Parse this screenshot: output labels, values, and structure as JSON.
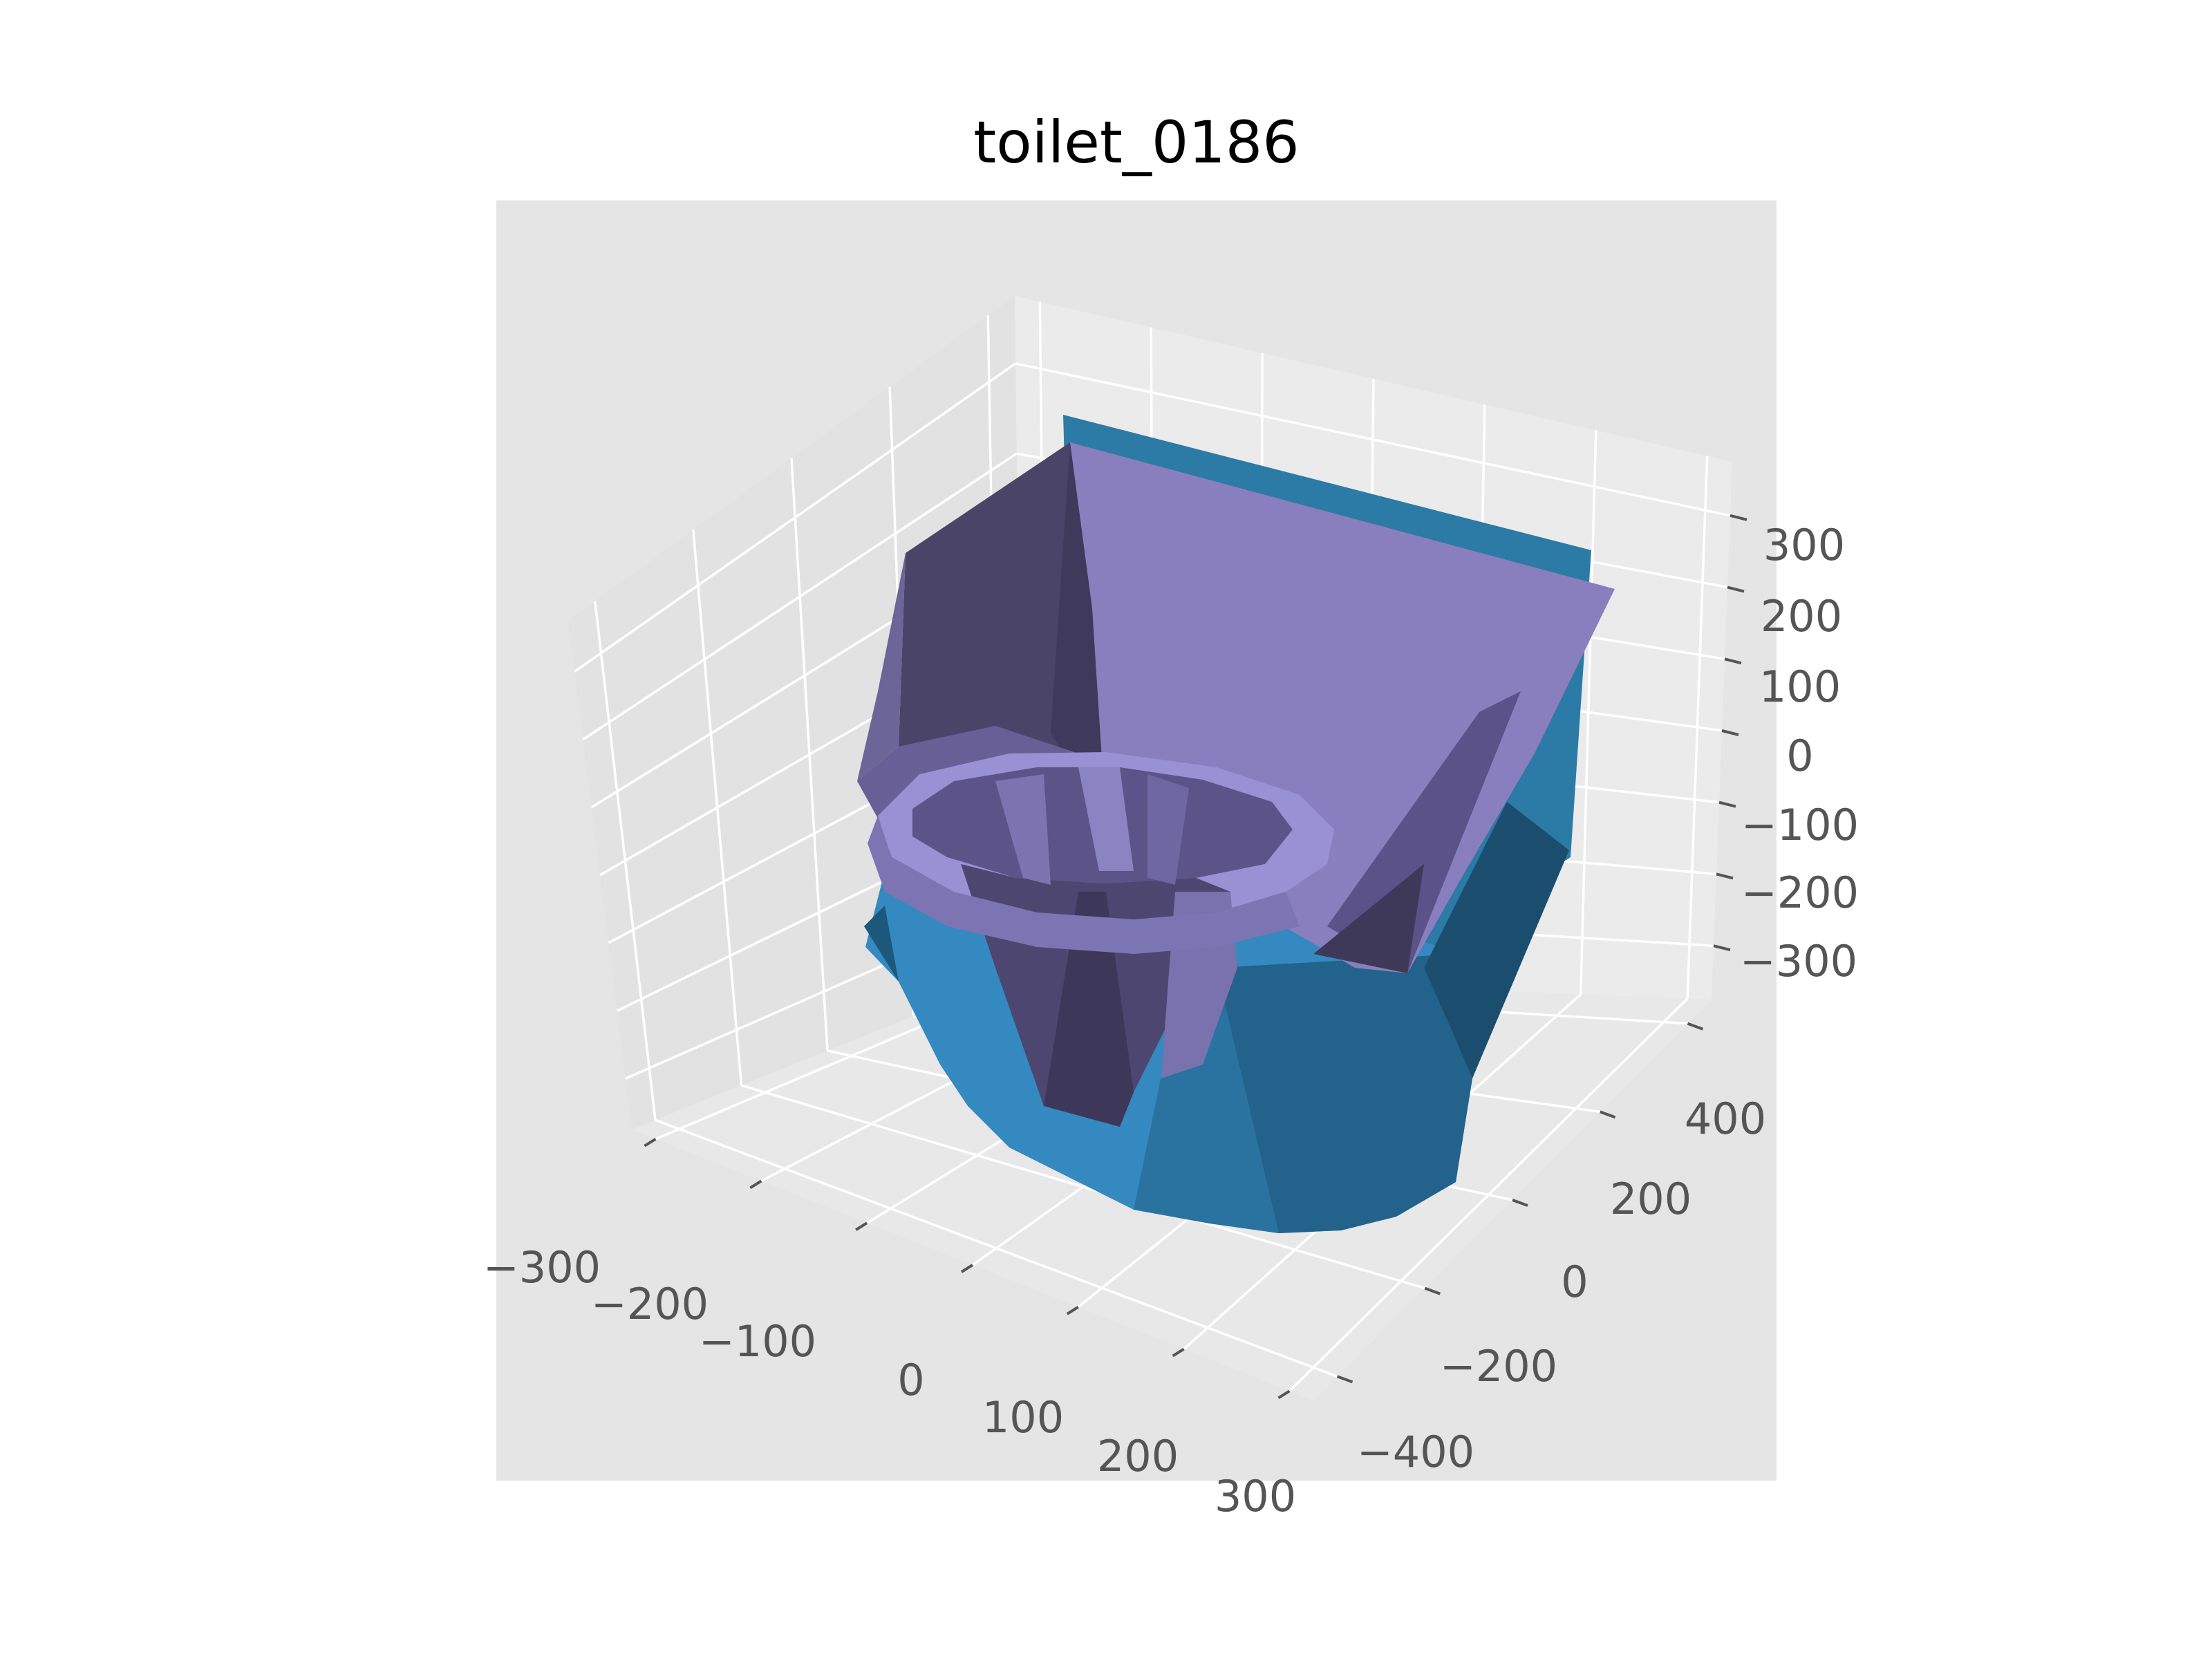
{
  "chart_data": {
    "type": "3d-surface",
    "title": "toilet_0186",
    "xlabel": "",
    "ylabel": "",
    "zlabel": "",
    "x_ticks": [
      "−300",
      "−200",
      "−100",
      "0",
      "100",
      "200",
      "300"
    ],
    "y_ticks": [
      "−400",
      "−200",
      "0",
      "200",
      "400"
    ],
    "z_ticks": [
      "300",
      "200",
      "100",
      "0",
      "−100",
      "−200",
      "−300"
    ],
    "x_range": [
      -300,
      300
    ],
    "y_range": [
      -450,
      450
    ],
    "z_range": [
      -350,
      350
    ],
    "grid": true,
    "legend": "none",
    "series": [
      {
        "part": "base",
        "color": "#2f83b5"
      },
      {
        "part": "seat-and-tank",
        "color": "#8a80c0"
      }
    ]
  },
  "colors": {
    "pane_background": "#e5e5e5",
    "grid": "#ffffff",
    "tick_text": "#555555",
    "base": "#2f83b5",
    "seat": "#8a80c0"
  }
}
